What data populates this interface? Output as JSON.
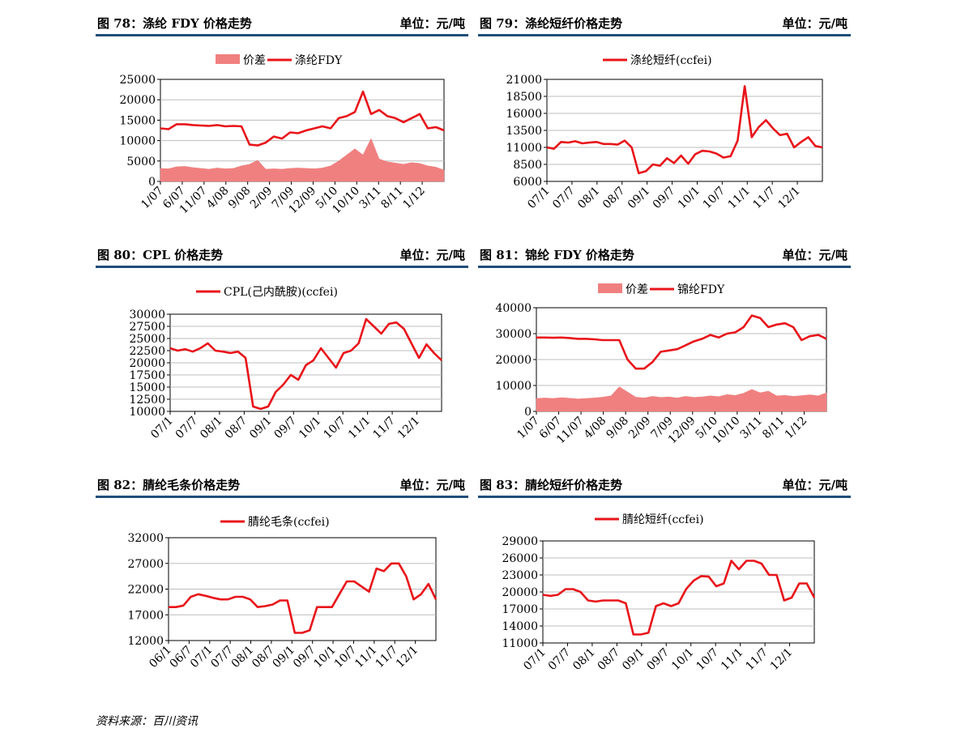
{
  "source": "资料来源：百川资讯",
  "colors": {
    "line": "#e8141a",
    "area": "#f08080",
    "header_rule": "#1f4e79",
    "grid": "#bdbdbd"
  },
  "chart_data": [
    {
      "id": "fig78",
      "type": "line+area",
      "title": "图 78：涤纶 FDY 价格走势",
      "unit": "单位：元/吨",
      "legend": [
        "价差",
        "涤纶FDY"
      ],
      "ylim": [
        0,
        25000
      ],
      "yticks": [
        "25000",
        "20000",
        "15000",
        "10000",
        "5000",
        "0"
      ],
      "xticks": [
        "1/07",
        "6/07",
        "11/07",
        "4/08",
        "9/08",
        "2/09",
        "7/09",
        "12/09",
        "5/10",
        "10/10",
        "3/11",
        "8/11",
        "1/12"
      ],
      "series": [
        {
          "name": "涤纶FDY",
          "kind": "line",
          "values": [
            13000,
            12800,
            14000,
            14000,
            13800,
            13700,
            13600,
            13800,
            13500,
            13600,
            13500,
            9000,
            8800,
            9500,
            11000,
            10500,
            12000,
            11800,
            12500,
            13000,
            13500,
            13000,
            15500,
            16000,
            17000,
            22000,
            16500,
            17500,
            16000,
            15500,
            14500,
            15500,
            16500,
            13000,
            13300,
            12500
          ]
        },
        {
          "name": "价差",
          "kind": "area",
          "values": [
            3200,
            3100,
            3600,
            3700,
            3400,
            3200,
            3000,
            3300,
            3100,
            3200,
            3800,
            4200,
            5200,
            3000,
            3100,
            3000,
            3200,
            3300,
            3200,
            3100,
            3300,
            3800,
            5000,
            6500,
            8000,
            6500,
            10500,
            5500,
            4800,
            4500,
            4200,
            4600,
            4400,
            3800,
            3500,
            2800
          ]
        }
      ]
    },
    {
      "id": "fig79",
      "type": "line",
      "title": "图 79：涤纶短纤价格走势",
      "unit": "单位：元/吨",
      "legend": [
        "涤纶短纤(ccfei)"
      ],
      "ylim": [
        6000,
        21000
      ],
      "yticks": [
        "21000",
        "18500",
        "16000",
        "13500",
        "11000",
        "8500",
        "6000"
      ],
      "xticks": [
        "07/1",
        "07/7",
        "08/1",
        "08/7",
        "09/1",
        "09/7",
        "10/1",
        "10/7",
        "11/1",
        "11/7",
        "12/1"
      ],
      "series": [
        {
          "name": "涤纶短纤(ccfei)",
          "kind": "line",
          "values": [
            11000,
            10800,
            11800,
            11700,
            11900,
            11600,
            11700,
            11800,
            11500,
            11500,
            11400,
            12000,
            11000,
            7200,
            7500,
            8500,
            8300,
            9400,
            8700,
            9800,
            8600,
            10000,
            10500,
            10400,
            10100,
            9500,
            9700,
            12000,
            20000,
            12500,
            14000,
            15000,
            13800,
            12800,
            13000,
            11000,
            11800,
            12500,
            11200,
            11000
          ]
        }
      ]
    },
    {
      "id": "fig80",
      "type": "line",
      "title": "图 80：CPL 价格走势",
      "unit": "单位：元/吨",
      "legend": [
        "CPL(己内酰胺)(ccfei)"
      ],
      "ylim": [
        10000,
        30000
      ],
      "yticks": [
        "30000",
        "27500",
        "25000",
        "22500",
        "20000",
        "17500",
        "15000",
        "12500",
        "10000"
      ],
      "xticks": [
        "07/1",
        "07/7",
        "08/1",
        "08/7",
        "09/1",
        "09/7",
        "10/1",
        "10/7",
        "11/1",
        "11/7",
        "12/1"
      ],
      "series": [
        {
          "name": "CPL(己内酰胺)(ccfei)",
          "kind": "line",
          "values": [
            23000,
            22500,
            22800,
            22300,
            23000,
            24000,
            22500,
            22300,
            22000,
            22300,
            21000,
            11000,
            10500,
            11000,
            14000,
            15500,
            17500,
            16500,
            19500,
            20500,
            23000,
            21000,
            19000,
            22000,
            22500,
            24000,
            29000,
            27500,
            26000,
            28000,
            28300,
            27000,
            24000,
            21000,
            23800,
            22000,
            20500
          ]
        }
      ]
    },
    {
      "id": "fig81",
      "type": "line+area",
      "title": "图 81：锦纶 FDY 价格走势",
      "unit": "单位：元/吨",
      "legend": [
        "价差",
        "锦纶FDY"
      ],
      "ylim": [
        0,
        40000
      ],
      "yticks": [
        "40000",
        "30000",
        "20000",
        "10000",
        "0"
      ],
      "xticks": [
        "1/07",
        "6/07",
        "11/07",
        "4/08",
        "9/08",
        "2/09",
        "7/09",
        "12/09",
        "5/10",
        "10/10",
        "3/11",
        "8/11",
        "1/12"
      ],
      "series": [
        {
          "name": "锦纶FDY",
          "kind": "line",
          "values": [
            28500,
            28500,
            28400,
            28500,
            28300,
            28000,
            28000,
            27800,
            27500,
            27500,
            27500,
            20000,
            16500,
            16500,
            19000,
            23000,
            23500,
            24000,
            25500,
            27000,
            28000,
            29500,
            28500,
            30000,
            30500,
            32500,
            37000,
            36000,
            32500,
            33500,
            34000,
            32500,
            27500,
            29000,
            29500,
            28000
          ]
        },
        {
          "name": "价差",
          "kind": "area",
          "values": [
            5000,
            5200,
            5000,
            5300,
            5100,
            4800,
            5000,
            5200,
            5500,
            6000,
            9500,
            7500,
            5500,
            5200,
            5800,
            5400,
            5600,
            5200,
            5800,
            5400,
            5600,
            6000,
            5700,
            6500,
            6200,
            7000,
            8500,
            7200,
            7800,
            6000,
            6200,
            5800,
            6100,
            6400,
            6000,
            7200
          ]
        }
      ]
    },
    {
      "id": "fig82",
      "type": "line",
      "title": "图 82：腈纶毛条价格走势",
      "unit": "单位：元/吨",
      "legend": [
        "腈纶毛条(ccfei)"
      ],
      "ylim": [
        12000,
        32000
      ],
      "yticks": [
        "32000",
        "27000",
        "22000",
        "17000",
        "12000"
      ],
      "xticks": [
        "06/1",
        "06/7",
        "07/1",
        "07/7",
        "08/1",
        "08/7",
        "09/1",
        "09/7",
        "10/1",
        "10/7",
        "11/1",
        "11/7",
        "12/1"
      ],
      "series": [
        {
          "name": "腈纶毛条(ccfei)",
          "kind": "line",
          "values": [
            18500,
            18500,
            18800,
            20500,
            21000,
            20700,
            20300,
            20000,
            20000,
            20500,
            20500,
            20000,
            18500,
            18700,
            19000,
            19800,
            19800,
            13500,
            13500,
            14000,
            18500,
            18500,
            18500,
            21000,
            23500,
            23500,
            22500,
            21500,
            26000,
            25500,
            27000,
            27000,
            24500,
            20000,
            21000,
            23000,
            20000
          ]
        }
      ]
    },
    {
      "id": "fig83",
      "type": "line",
      "title": "图 83：腈纶短纤价格走势",
      "unit": "单位：元/吨",
      "legend": [
        "腈纶短纤(ccfei)"
      ],
      "ylim": [
        11000,
        29000
      ],
      "yticks": [
        "29000",
        "26000",
        "23000",
        "20000",
        "17000",
        "14000",
        "11000"
      ],
      "xticks": [
        "07/1",
        "07/7",
        "08/1",
        "08/7",
        "09/1",
        "09/7",
        "10/1",
        "10/7",
        "11/1",
        "11/7",
        "12/1"
      ],
      "series": [
        {
          "name": "腈纶短纤(ccfei)",
          "kind": "line",
          "values": [
            19500,
            19300,
            19500,
            20500,
            20500,
            20000,
            18500,
            18300,
            18500,
            18500,
            18500,
            18000,
            12500,
            12500,
            12800,
            17500,
            18000,
            17500,
            18000,
            20500,
            22000,
            22800,
            22700,
            21000,
            21500,
            25500,
            24000,
            25500,
            25500,
            25000,
            23000,
            23000,
            18500,
            19000,
            21500,
            21500,
            19000
          ]
        }
      ]
    }
  ]
}
